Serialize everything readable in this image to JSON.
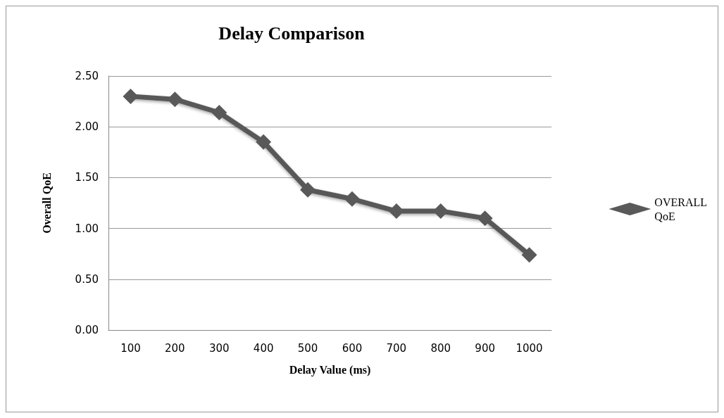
{
  "chart_data": {
    "type": "line",
    "title": "Delay Comparison",
    "xlabel": "Delay Value (ms)",
    "ylabel": "Overall QoE",
    "categories": [
      "100",
      "200",
      "300",
      "400",
      "500",
      "600",
      "700",
      "800",
      "900",
      "1000"
    ],
    "series": [
      {
        "name": "OVERALL QoE",
        "color": "#595959",
        "values": [
          2.3,
          2.27,
          2.14,
          1.85,
          1.38,
          1.29,
          1.17,
          1.17,
          1.1,
          0.74
        ]
      }
    ],
    "ylim": [
      0,
      2.5
    ],
    "yticks": [
      {
        "value": 0,
        "label": "0.00"
      },
      {
        "value": 0.5,
        "label": "0.50"
      },
      {
        "value": 1,
        "label": "1.00"
      },
      {
        "value": 1.5,
        "label": "1.50"
      },
      {
        "value": 2,
        "label": "2.00"
      },
      {
        "value": 2.5,
        "label": "2.50"
      }
    ],
    "grid": "y",
    "legend": "right",
    "marker": "diamond",
    "line_style": "solid"
  }
}
